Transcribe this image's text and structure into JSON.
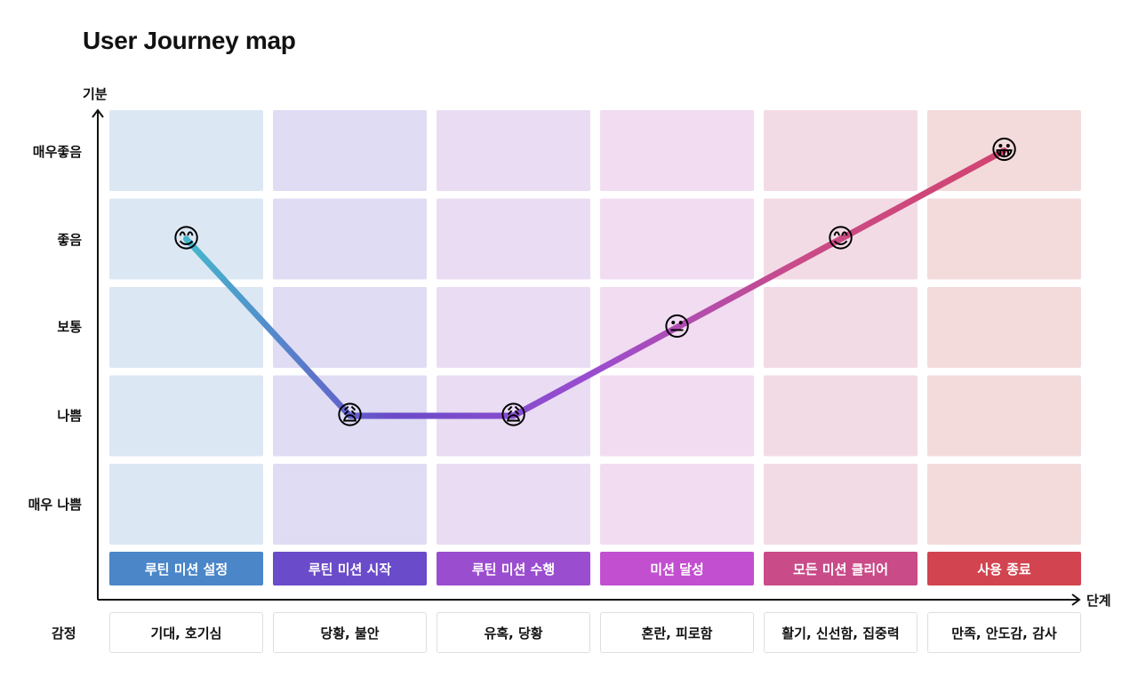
{
  "title": "User Journey map",
  "y_axis_label": "기분",
  "x_axis_label": "단계",
  "emotion_row_label": "감정",
  "colors": {
    "stage_bg": [
      "#dce7f4",
      "#dfdcf4",
      "#e9dcf3",
      "#f1dcf1",
      "#f3dbe5",
      "#f3dbdc"
    ],
    "stage_label": [
      "#4a86c8",
      "#6a4bc9",
      "#9b4dd0",
      "#c24fd0",
      "#c94b88",
      "#d14450"
    ],
    "line_gradient": [
      "#44b8cc",
      "#6a4bc9",
      "#9b4dd0",
      "#c94b88",
      "#d14470"
    ]
  },
  "chart_data": {
    "type": "line",
    "categories": [
      "루틴 미션 설정",
      "루틴 미션 시작",
      "루틴 미션 수행",
      "미션 달성",
      "모든 미션 클리어",
      "사용 종료"
    ],
    "y_levels": [
      "매우 나쁨",
      "나쁨",
      "보통",
      "좋음",
      "매우좋음"
    ],
    "y_level_labels_top_to_bottom": [
      "매우좋음",
      "좋음",
      "보통",
      "나쁨",
      "매우 나쁨"
    ],
    "values": [
      4,
      2,
      2,
      3,
      4,
      5
    ],
    "markers": [
      "smiling-face",
      "weary-face",
      "weary-face",
      "neutral-face",
      "smiling-face",
      "grinning-face"
    ],
    "marker_glyphs": [
      "😊",
      "😩",
      "😩",
      "😐",
      "😊",
      "😀"
    ],
    "emotions": [
      "기대, 호기심",
      "당황, 불안",
      "유혹, 당황",
      "혼란, 피로함",
      "활기, 신선함, 집중력",
      "만족, 안도감, 감사"
    ]
  }
}
